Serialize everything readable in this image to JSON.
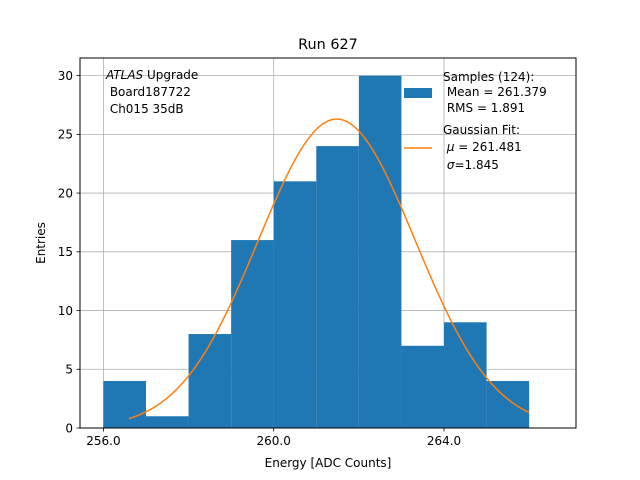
{
  "chart_data": {
    "type": "bar",
    "title": "Run 627",
    "xlabel": "Energy [ADC Counts]",
    "ylabel": "Entries",
    "xlim": [
      255.45,
      267.1
    ],
    "ylim": [
      0,
      31.5
    ],
    "grid": true,
    "x_ticks": [
      256,
      260,
      264
    ],
    "x_tick_labels": [
      "256.0",
      "260.0",
      "264.0"
    ],
    "y_ticks": [
      0,
      5,
      10,
      15,
      20,
      25,
      30
    ],
    "bins": [
      {
        "left": 256,
        "right": 257,
        "count": 4
      },
      {
        "left": 257,
        "right": 258,
        "count": 1
      },
      {
        "left": 258,
        "right": 259,
        "count": 8
      },
      {
        "left": 259,
        "right": 260,
        "count": 16
      },
      {
        "left": 260,
        "right": 261,
        "count": 21
      },
      {
        "left": 261,
        "right": 262,
        "count": 24
      },
      {
        "left": 262,
        "right": 263,
        "count": 30
      },
      {
        "left": 263,
        "right": 264,
        "count": 7
      },
      {
        "left": 264,
        "right": 265,
        "count": 9
      },
      {
        "left": 265,
        "right": 266,
        "count": 4
      }
    ],
    "fit": {
      "type": "gaussian",
      "mu": 261.481,
      "sigma": 1.845,
      "amplitude": 26.3,
      "x_range": [
        256.6,
        266.0
      ]
    },
    "annotation": {
      "italic": "ATLAS",
      "text1": " Upgrade",
      "line2": " Board187722",
      "line3": " Ch015 35dB"
    },
    "legend": {
      "position": "top-right",
      "samples": {
        "line1": "Samples (124):",
        "line2": " Mean = 261.379",
        "line3": " RMS = 1.891"
      },
      "fit": {
        "line1": "Gaussian Fit:",
        "line2_sym": "μ",
        "line2_val": " = 261.481",
        "line3_sym": "σ",
        "line3_val": "=1.845"
      }
    },
    "colors": {
      "bars": "#1f77b4",
      "fit": "#ff7f0e",
      "grid": "#b0b0b0"
    }
  }
}
